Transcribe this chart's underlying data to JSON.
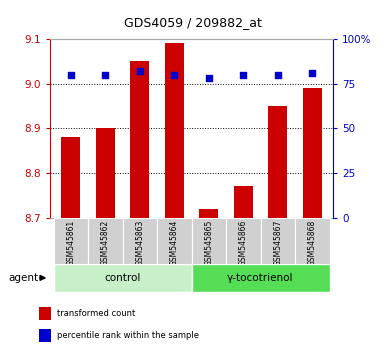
{
  "title": "GDS4059 / 209882_at",
  "samples": [
    "GSM545861",
    "GSM545862",
    "GSM545863",
    "GSM545864",
    "GSM545865",
    "GSM545866",
    "GSM545867",
    "GSM545868"
  ],
  "red_values": [
    8.88,
    8.9,
    9.05,
    9.09,
    8.72,
    8.77,
    8.95,
    8.99
  ],
  "blue_values": [
    80,
    80,
    82,
    80,
    78,
    80,
    80,
    81
  ],
  "ylim_left": [
    8.7,
    9.1
  ],
  "ylim_right": [
    0,
    100
  ],
  "yticks_left": [
    8.7,
    8.8,
    8.9,
    9.0,
    9.1
  ],
  "yticks_right": [
    0,
    25,
    50,
    75,
    100
  ],
  "ytick_labels_right": [
    "0",
    "25",
    "50",
    "75",
    "100%"
  ],
  "groups": [
    {
      "label": "control",
      "indices": [
        0,
        1,
        2,
        3
      ],
      "color": "#c8f0c8"
    },
    {
      "label": "γ-tocotrienol",
      "indices": [
        4,
        5,
        6,
        7
      ],
      "color": "#55dd55"
    }
  ],
  "agent_label": "agent",
  "legend_items": [
    {
      "color": "#cc0000",
      "label": "transformed count"
    },
    {
      "color": "#0000cc",
      "label": "percentile rank within the sample"
    }
  ],
  "bar_color": "#cc0000",
  "dot_color": "#0000cc",
  "bar_width": 0.55,
  "grid_color": "#000000",
  "bg_color": "#ffffff",
  "tick_color_left": "#cc0000",
  "tick_color_right": "#0000cc",
  "label_bg_color": "#d0d0d0",
  "xlim": [
    -0.6,
    7.6
  ]
}
